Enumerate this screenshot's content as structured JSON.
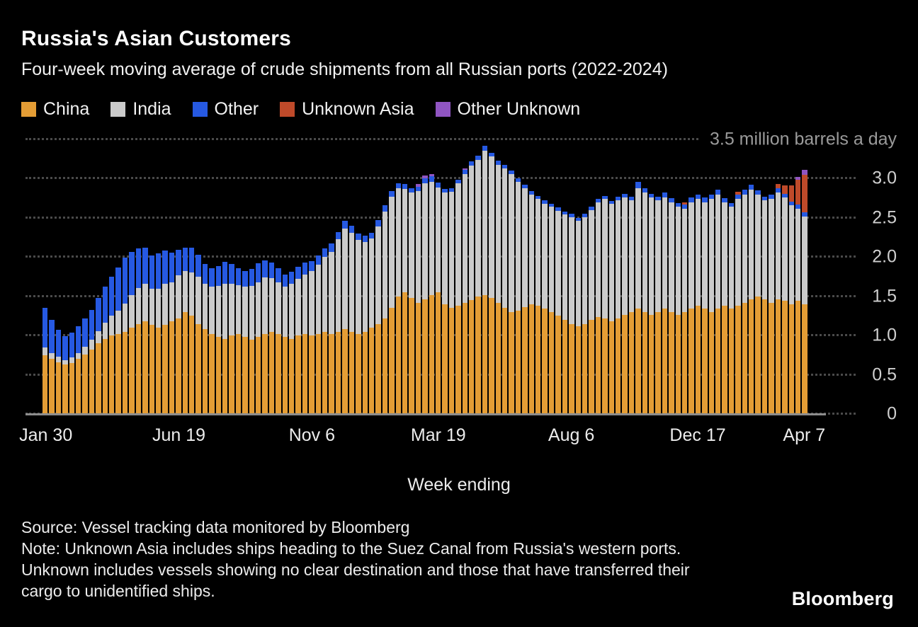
{
  "title": "Russia's Asian Customers",
  "subtitle": "Four-week moving average of crude shipments from all Russian ports (2022-2024)",
  "chart_data": {
    "type": "bar",
    "stacked": true,
    "unit_annotation": "3.5 million barrels a day",
    "xlabel": "Week ending",
    "ylim": [
      0,
      3.5
    ],
    "grid": "dotted-horizontal",
    "legend_position": "top",
    "y_tick_labels": [
      "0",
      "0.5",
      "1.0",
      "1.5",
      "2.0",
      "2.5",
      "3.0"
    ],
    "x_tick_labels": [
      {
        "label": "Jan 30",
        "index": 0
      },
      {
        "label": "Jun 19",
        "index": 20
      },
      {
        "label": "Nov 6",
        "index": 40
      },
      {
        "label": "Mar 19",
        "index": 59
      },
      {
        "label": "Aug 6",
        "index": 79
      },
      {
        "label": "Dec 17",
        "index": 98
      },
      {
        "label": "Apr 7",
        "index": 114
      }
    ],
    "series": [
      {
        "name": "China",
        "color": "#e49d35",
        "values": [
          0.75,
          0.7,
          0.66,
          0.63,
          0.65,
          0.7,
          0.76,
          0.82,
          0.9,
          0.96,
          1.0,
          1.02,
          1.05,
          1.1,
          1.15,
          1.18,
          1.14,
          1.1,
          1.14,
          1.18,
          1.22,
          1.3,
          1.25,
          1.15,
          1.08,
          1.02,
          0.98,
          0.96,
          1.0,
          1.02,
          0.98,
          0.95,
          0.98,
          1.02,
          1.05,
          1.02,
          0.98,
          0.96,
          1.0,
          1.02,
          1.0,
          1.02,
          1.05,
          1.02,
          1.05,
          1.08,
          1.05,
          1.02,
          1.05,
          1.1,
          1.15,
          1.22,
          1.35,
          1.5,
          1.55,
          1.48,
          1.42,
          1.46,
          1.52,
          1.55,
          1.4,
          1.35,
          1.38,
          1.42,
          1.45,
          1.5,
          1.52,
          1.48,
          1.42,
          1.35,
          1.3,
          1.32,
          1.36,
          1.4,
          1.38,
          1.34,
          1.3,
          1.25,
          1.2,
          1.15,
          1.12,
          1.15,
          1.2,
          1.24,
          1.22,
          1.18,
          1.22,
          1.26,
          1.3,
          1.34,
          1.3,
          1.26,
          1.3,
          1.34,
          1.3,
          1.26,
          1.3,
          1.34,
          1.38,
          1.34,
          1.3,
          1.34,
          1.38,
          1.34,
          1.38,
          1.42,
          1.46,
          1.5,
          1.46,
          1.42,
          1.46,
          1.44,
          1.4,
          1.44,
          1.4
        ]
      },
      {
        "name": "India",
        "color": "#cbcbcb",
        "values": [
          0.1,
          0.08,
          0.07,
          0.06,
          0.07,
          0.08,
          0.1,
          0.13,
          0.16,
          0.2,
          0.25,
          0.3,
          0.36,
          0.42,
          0.46,
          0.48,
          0.46,
          0.5,
          0.52,
          0.5,
          0.55,
          0.52,
          0.55,
          0.6,
          0.58,
          0.6,
          0.65,
          0.7,
          0.66,
          0.62,
          0.64,
          0.68,
          0.7,
          0.72,
          0.68,
          0.66,
          0.64,
          0.7,
          0.72,
          0.76,
          0.82,
          0.88,
          0.95,
          1.05,
          1.18,
          1.28,
          1.26,
          1.2,
          1.14,
          1.14,
          1.24,
          1.36,
          1.42,
          1.38,
          1.32,
          1.34,
          1.42,
          1.48,
          1.44,
          1.34,
          1.42,
          1.48,
          1.56,
          1.64,
          1.72,
          1.74,
          1.84,
          1.8,
          1.76,
          1.78,
          1.76,
          1.64,
          1.52,
          1.4,
          1.36,
          1.34,
          1.34,
          1.34,
          1.34,
          1.36,
          1.34,
          1.36,
          1.4,
          1.46,
          1.52,
          1.5,
          1.5,
          1.5,
          1.42,
          1.54,
          1.52,
          1.5,
          1.42,
          1.42,
          1.4,
          1.38,
          1.32,
          1.36,
          1.36,
          1.36,
          1.44,
          1.46,
          1.32,
          1.3,
          1.36,
          1.38,
          1.4,
          1.3,
          1.26,
          1.32,
          1.36,
          1.32,
          1.26,
          1.18,
          1.12
        ]
      },
      {
        "name": "Other",
        "color": "#2659e2",
        "values": [
          0.5,
          0.42,
          0.34,
          0.3,
          0.32,
          0.34,
          0.36,
          0.38,
          0.42,
          0.46,
          0.5,
          0.55,
          0.58,
          0.55,
          0.5,
          0.46,
          0.42,
          0.45,
          0.42,
          0.38,
          0.32,
          0.3,
          0.32,
          0.28,
          0.25,
          0.24,
          0.26,
          0.28,
          0.25,
          0.22,
          0.2,
          0.22,
          0.24,
          0.22,
          0.2,
          0.18,
          0.16,
          0.15,
          0.16,
          0.15,
          0.13,
          0.12,
          0.11,
          0.1,
          0.09,
          0.1,
          0.09,
          0.08,
          0.08,
          0.07,
          0.08,
          0.08,
          0.07,
          0.06,
          0.06,
          0.06,
          0.06,
          0.06,
          0.07,
          0.06,
          0.05,
          0.05,
          0.05,
          0.05,
          0.05,
          0.05,
          0.06,
          0.05,
          0.05,
          0.05,
          0.04,
          0.04,
          0.04,
          0.04,
          0.04,
          0.04,
          0.04,
          0.04,
          0.04,
          0.04,
          0.04,
          0.04,
          0.04,
          0.04,
          0.04,
          0.04,
          0.05,
          0.05,
          0.05,
          0.08,
          0.06,
          0.05,
          0.05,
          0.06,
          0.05,
          0.05,
          0.05,
          0.06,
          0.06,
          0.06,
          0.06,
          0.06,
          0.05,
          0.05,
          0.06,
          0.06,
          0.06,
          0.05,
          0.05,
          0.06,
          0.06,
          0.05,
          0.05,
          0.05,
          0.05
        ]
      },
      {
        "name": "Unknown Asia",
        "color": "#bf4a2a",
        "values": [
          0,
          0,
          0,
          0,
          0,
          0,
          0,
          0,
          0,
          0,
          0,
          0,
          0,
          0,
          0,
          0,
          0,
          0,
          0,
          0,
          0,
          0,
          0,
          0,
          0,
          0,
          0,
          0,
          0,
          0,
          0,
          0,
          0,
          0,
          0,
          0,
          0,
          0,
          0,
          0,
          0,
          0,
          0,
          0,
          0,
          0,
          0,
          0,
          0,
          0,
          0,
          0,
          0,
          0,
          0,
          0,
          0,
          0,
          0,
          0,
          0,
          0,
          0,
          0,
          0,
          0,
          0,
          0,
          0,
          0,
          0,
          0,
          0,
          0,
          0,
          0,
          0,
          0,
          0,
          0,
          0,
          0,
          0,
          0,
          0,
          0,
          0,
          0,
          0,
          0,
          0,
          0,
          0,
          0,
          0,
          0,
          0.03,
          0,
          0,
          0,
          0,
          0,
          0,
          0,
          0.03,
          0,
          0,
          0,
          0,
          0,
          0.05,
          0.1,
          0.2,
          0.32,
          0.48
        ]
      },
      {
        "name": "Other Unknown",
        "color": "#9055c2",
        "values": [
          0,
          0,
          0,
          0,
          0,
          0,
          0,
          0,
          0,
          0,
          0,
          0,
          0,
          0,
          0,
          0,
          0,
          0,
          0,
          0,
          0,
          0,
          0,
          0,
          0,
          0,
          0,
          0,
          0,
          0,
          0,
          0,
          0,
          0,
          0,
          0,
          0,
          0,
          0,
          0,
          0,
          0,
          0,
          0,
          0,
          0,
          0,
          0,
          0,
          0,
          0,
          0,
          0,
          0,
          0,
          0,
          0.03,
          0.04,
          0.03,
          0,
          0,
          0,
          0,
          0.02,
          0,
          0,
          0,
          0,
          0,
          0,
          0,
          0,
          0,
          0,
          0,
          0,
          0,
          0,
          0,
          0,
          0,
          0,
          0,
          0,
          0,
          0,
          0,
          0,
          0,
          0,
          0,
          0,
          0,
          0,
          0,
          0,
          0,
          0,
          0,
          0,
          0,
          0,
          0,
          0,
          0,
          0,
          0,
          0,
          0,
          0,
          0,
          0,
          0,
          0.03,
          0.06
        ]
      }
    ]
  },
  "footer": {
    "source": "Source: Vessel tracking data monitored by Bloomberg",
    "note": "Note: Unknown Asia includes ships heading to the Suez Canal from Russia's western ports. Unknown includes vessels showing no clear destination and those that have transferred their cargo to unidentified ships.",
    "logo": "Bloomberg"
  }
}
